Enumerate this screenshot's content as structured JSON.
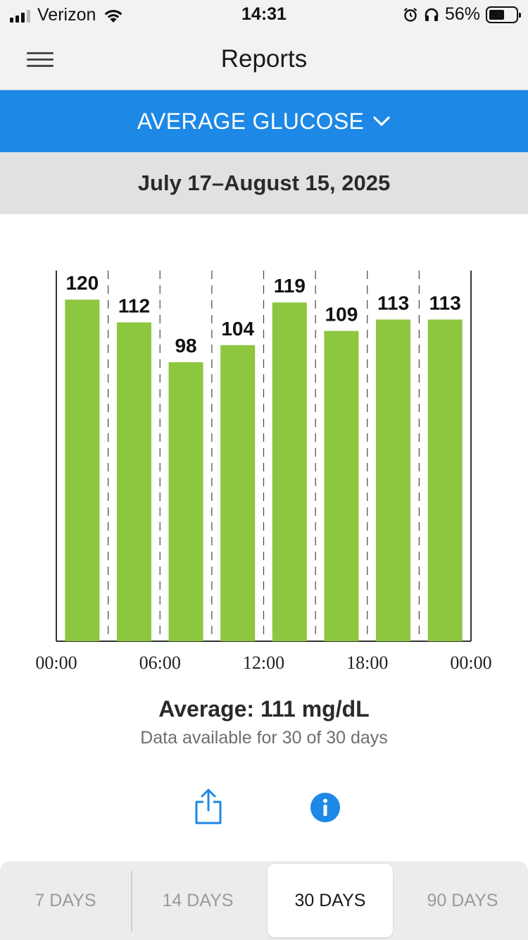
{
  "status_bar": {
    "carrier": "Verizon",
    "time": "14:31",
    "battery_percent": "56%",
    "battery_level": 0.56,
    "icons": [
      "signal-icon",
      "wifi-icon",
      "alarm-icon",
      "headphones-icon",
      "battery-icon"
    ]
  },
  "nav": {
    "title": "Reports",
    "menu_icon": "hamburger-menu-icon"
  },
  "report_selector": {
    "label": "AVERAGE GLUCOSE",
    "icon": "chevron-down-icon",
    "color": "#1d88e5"
  },
  "date_range": "July 17–August 15, 2025",
  "chart_data": {
    "type": "bar",
    "categories": [
      "00:00–03:00",
      "03:00–06:00",
      "06:00–09:00",
      "09:00–12:00",
      "12:00–15:00",
      "15:00–18:00",
      "18:00–21:00",
      "21:00–24:00"
    ],
    "values": [
      120,
      112,
      98,
      104,
      119,
      109,
      113,
      113
    ],
    "value_labels": [
      "120",
      "112",
      "98",
      "104",
      "119",
      "109",
      "113",
      "113"
    ],
    "x_tick_labels": [
      "00:00",
      "06:00",
      "12:00",
      "18:00",
      "00:00"
    ],
    "bar_color": "#8dc63f",
    "grid": "dashed vertical separators",
    "xlabel": "",
    "ylabel": ""
  },
  "summary": {
    "average": "Average: 111 mg/dL",
    "availability": "Data available for 30 of 30 days"
  },
  "actions": {
    "share_icon": "share-icon",
    "info_icon": "info-icon",
    "accent": "#1d88e5"
  },
  "period_tabs": [
    {
      "label": "7 DAYS",
      "active": false
    },
    {
      "label": "14 DAYS",
      "active": false
    },
    {
      "label": "30 DAYS",
      "active": true
    },
    {
      "label": "90 DAYS",
      "active": false
    }
  ]
}
